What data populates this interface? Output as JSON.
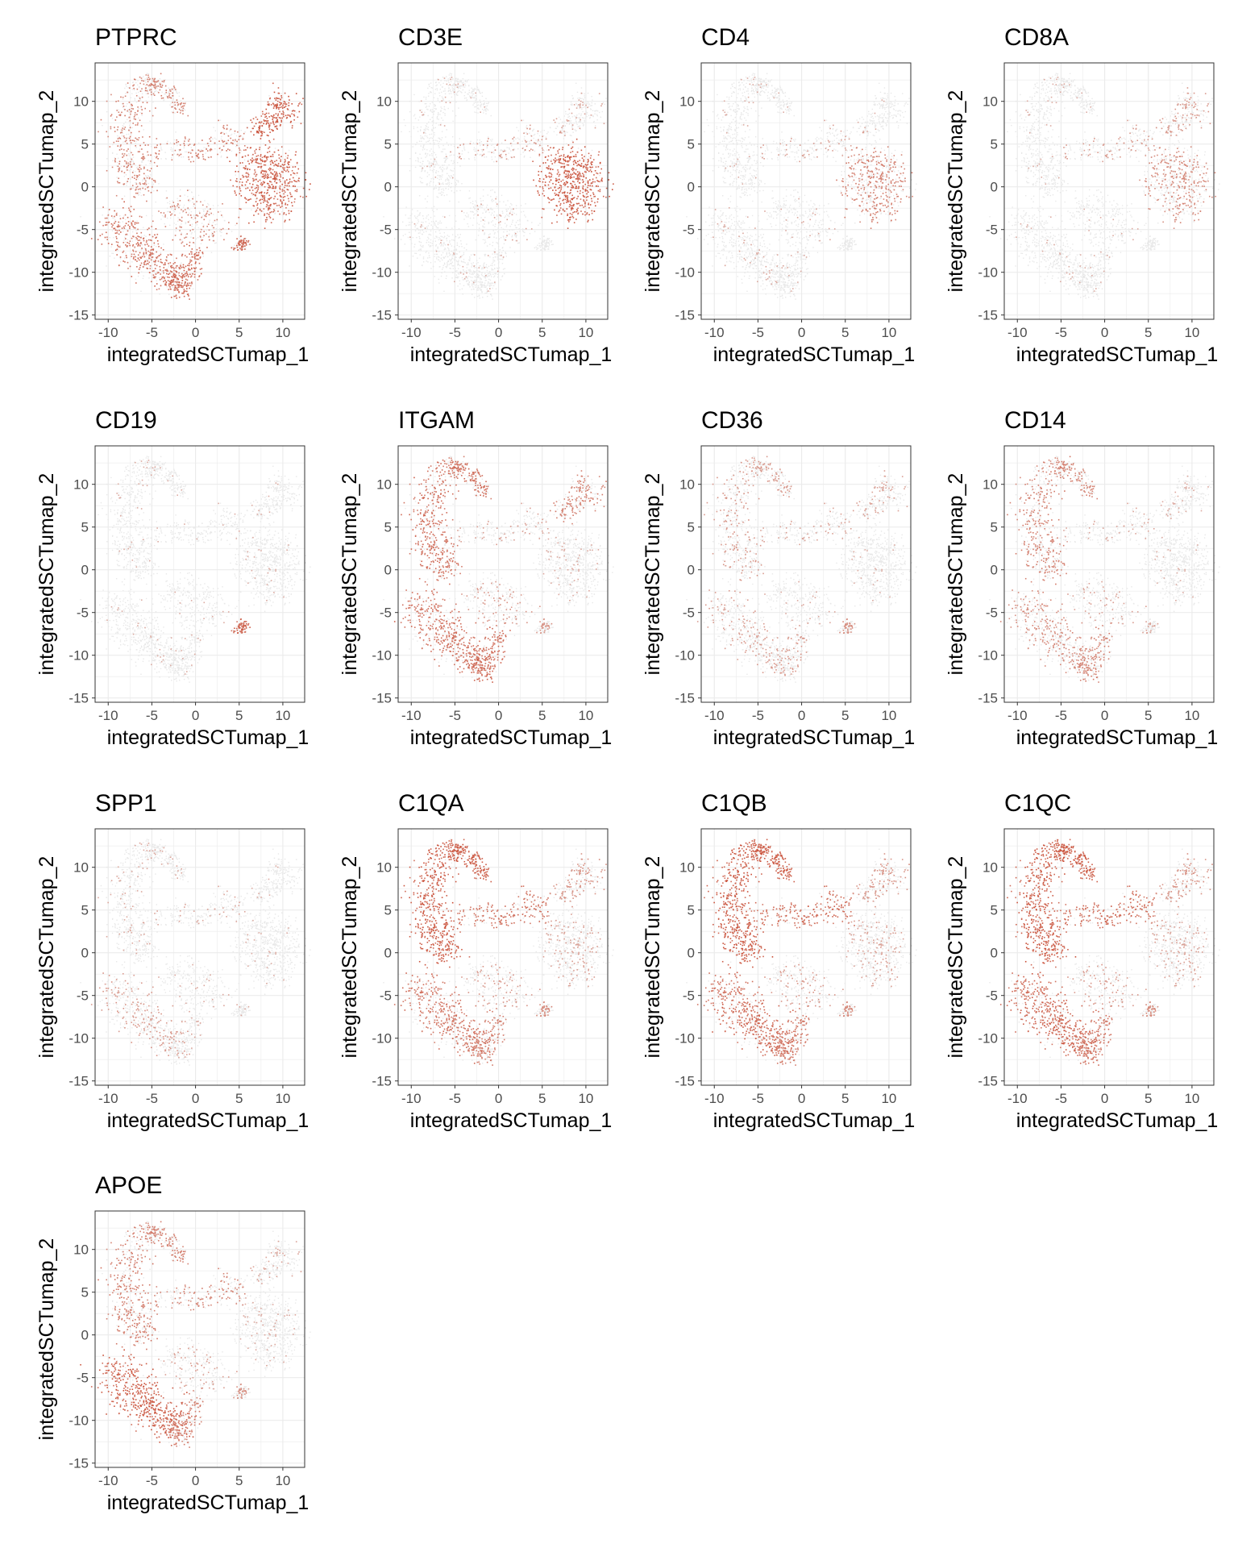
{
  "figure": {
    "colors": {
      "low": "#e8e8e8",
      "high": "#c8452c",
      "panel_border": "#333333",
      "grid": "#ebebeb"
    }
  },
  "chart_data": {
    "type": "scatter",
    "xlabel": "integratedSCTumap_1",
    "ylabel": "integratedSCTumap_2",
    "xlim": [
      -11.5,
      12.5
    ],
    "ylim": [
      -15.5,
      14.5
    ],
    "xticks": [
      -10,
      -5,
      0,
      5,
      10
    ],
    "yticks": [
      -15,
      -10,
      -5,
      0,
      5,
      10
    ],
    "grid": true,
    "panels": [
      {
        "title": "PTPRC",
        "expression": {
          "left_arm": 0.55,
          "lower_left": 0.75,
          "center": 0.5,
          "right_top": 0.95,
          "right_main": 0.9,
          "bridge": 0.6,
          "small_right": 0.8,
          "lower_tail": 0.85
        }
      },
      {
        "title": "CD3E",
        "expression": {
          "left_arm": 0.05,
          "lower_left": 0.05,
          "center": 0.15,
          "right_top": 0.15,
          "right_main": 0.95,
          "bridge": 0.3,
          "small_right": 0.05,
          "lower_tail": 0.05
        }
      },
      {
        "title": "CD4",
        "expression": {
          "left_arm": 0.05,
          "lower_left": 0.1,
          "center": 0.1,
          "right_top": 0.05,
          "right_main": 0.55,
          "bridge": 0.2,
          "small_right": 0.05,
          "lower_tail": 0.05
        }
      },
      {
        "title": "CD8A",
        "expression": {
          "left_arm": 0.05,
          "lower_left": 0.05,
          "center": 0.05,
          "right_top": 0.3,
          "right_main": 0.45,
          "bridge": 0.25,
          "small_right": 0.05,
          "lower_tail": 0.05
        }
      },
      {
        "title": "CD19",
        "expression": {
          "left_arm": 0.05,
          "lower_left": 0.05,
          "center": 0.05,
          "right_top": 0.05,
          "right_main": 0.05,
          "bridge": 0.05,
          "small_right": 0.85,
          "lower_tail": 0.05
        }
      },
      {
        "title": "ITGAM",
        "expression": {
          "left_arm": 0.75,
          "lower_left": 0.75,
          "center": 0.3,
          "right_top": 0.55,
          "right_main": 0.1,
          "bridge": 0.2,
          "small_right": 0.3,
          "lower_tail": 0.8
        }
      },
      {
        "title": "CD36",
        "expression": {
          "left_arm": 0.3,
          "lower_left": 0.25,
          "center": 0.1,
          "right_top": 0.2,
          "right_main": 0.05,
          "bridge": 0.2,
          "small_right": 0.4,
          "lower_tail": 0.3
        }
      },
      {
        "title": "CD14",
        "expression": {
          "left_arm": 0.55,
          "lower_left": 0.45,
          "center": 0.2,
          "right_top": 0.1,
          "right_main": 0.05,
          "bridge": 0.15,
          "small_right": 0.2,
          "lower_tail": 0.55
        }
      },
      {
        "title": "SPP1",
        "expression": {
          "left_arm": 0.1,
          "lower_left": 0.3,
          "center": 0.1,
          "right_top": 0.05,
          "right_main": 0.05,
          "bridge": 0.15,
          "small_right": 0.1,
          "lower_tail": 0.15
        }
      },
      {
        "title": "C1QA",
        "expression": {
          "left_arm": 0.95,
          "lower_left": 0.7,
          "center": 0.3,
          "right_top": 0.35,
          "right_main": 0.2,
          "bridge": 0.75,
          "small_right": 0.45,
          "lower_tail": 0.6
        }
      },
      {
        "title": "C1QB",
        "expression": {
          "left_arm": 0.95,
          "lower_left": 0.8,
          "center": 0.3,
          "right_top": 0.35,
          "right_main": 0.2,
          "bridge": 0.8,
          "small_right": 0.45,
          "lower_tail": 0.7
        }
      },
      {
        "title": "C1QC",
        "expression": {
          "left_arm": 0.95,
          "lower_left": 0.85,
          "center": 0.3,
          "right_top": 0.35,
          "right_main": 0.2,
          "bridge": 0.8,
          "small_right": 0.45,
          "lower_tail": 0.7
        }
      },
      {
        "title": "APOE",
        "expression": {
          "left_arm": 0.6,
          "lower_left": 0.95,
          "center": 0.25,
          "right_top": 0.15,
          "right_main": 0.1,
          "bridge": 0.5,
          "small_right": 0.35,
          "lower_tail": 0.6
        }
      }
    ]
  }
}
